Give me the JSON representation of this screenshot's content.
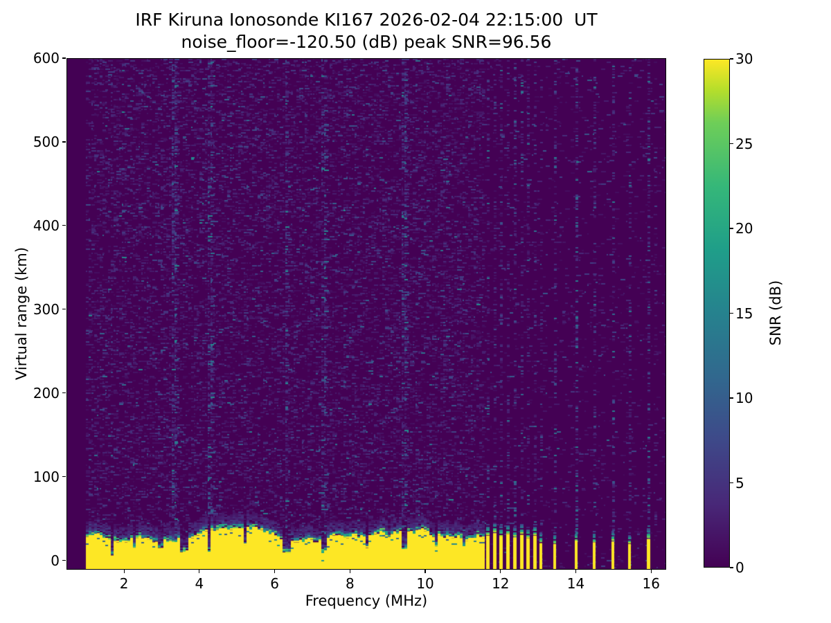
{
  "figure": {
    "title": "IRF Kiruna Ionosonde KI167 2026-02-04 22:15:00  UT",
    "subtitle": "noise_floor=-120.50 (dB) peak SNR=96.56",
    "background_color": "#ffffff"
  },
  "chart_data": {
    "type": "heatmap",
    "title": "IRF Kiruna Ionosonde KI167 2026-02-04 22:15:00  UT",
    "subtitle": "noise_floor=-120.50 (dB) peak SNR=96.56",
    "station": "IRF Kiruna Ionosonde KI167",
    "timestamp_ut": "2026-02-04 22:15:00",
    "noise_floor_db": -120.5,
    "peak_snr_db": 96.56,
    "xlabel": "Frequency (MHz)",
    "ylabel": "Virtual range (km)",
    "xlim": [
      0.47,
      16.4
    ],
    "ylim": [
      -11,
      600
    ],
    "xticks": [
      2,
      4,
      6,
      8,
      10,
      12,
      14,
      16
    ],
    "yticks": [
      0,
      100,
      200,
      300,
      400,
      500,
      600
    ],
    "grid": false,
    "colorbar": {
      "label": "SNR (dB)",
      "ticks": [
        0,
        5,
        10,
        15,
        20,
        25,
        30
      ],
      "vmin": 0,
      "vmax": 30,
      "colormap": "viridis",
      "stops": [
        [
          0,
          "#440154"
        ],
        [
          0.125,
          "#482878"
        ],
        [
          0.25,
          "#3e4989"
        ],
        [
          0.375,
          "#31688e"
        ],
        [
          0.5,
          "#26828e"
        ],
        [
          0.625,
          "#1f9e89"
        ],
        [
          0.75,
          "#35b779"
        ],
        [
          0.875,
          "#6ece58"
        ],
        [
          0.94,
          "#b5de2b"
        ],
        [
          1,
          "#fde725"
        ]
      ]
    },
    "content": {
      "seed": 20260204,
      "data_min_mhz": 0.97,
      "background_snr_db": 0,
      "noise": {
        "density": 0.4,
        "mean_db": 2.1,
        "density_above_11p6mhz": 0.08,
        "max_db": 16
      },
      "noisy_columns_mhz": [
        3.35,
        4.3,
        6.32,
        7.3,
        9.45
      ],
      "ground_band": {
        "f_start_mhz": 0.97,
        "f_end_mhz": 11.55,
        "top_km_mean": 29,
        "top_km_min": 21,
        "top_km_max": 38,
        "transition_km": 25,
        "saturated_snr_db": 30,
        "notches": [
          {
            "f": 1.65,
            "w": 0.05,
            "d": 5
          },
          {
            "f": 2.25,
            "w": 0.04,
            "d": 14
          },
          {
            "f": 2.95,
            "w": 0.05,
            "d": 12
          },
          {
            "f": 3.57,
            "w": 0.1,
            "d": 8
          },
          {
            "f": 4.25,
            "w": 0.07,
            "d": 9
          },
          {
            "f": 5.2,
            "w": 0.04,
            "d": 15
          },
          {
            "f": 6.32,
            "w": 0.09,
            "d": 6
          },
          {
            "f": 7.32,
            "w": 0.06,
            "d": 8
          },
          {
            "f": 8.45,
            "w": 0.04,
            "d": 14
          },
          {
            "f": 9.45,
            "w": 0.05,
            "d": 12
          },
          {
            "f": 10.3,
            "w": 0.04,
            "d": 16
          },
          {
            "f": 11.05,
            "w": 0.04,
            "d": 15
          }
        ]
      },
      "interference_columns": [
        {
          "f": 11.66,
          "s": 3.0,
          "p": 0.3
        },
        {
          "f": 11.84,
          "s": 3.2,
          "p": 0.32
        },
        {
          "f": 12.02,
          "s": 3.4,
          "p": 0.34
        },
        {
          "f": 12.2,
          "s": 3.2,
          "p": 0.3
        },
        {
          "f": 12.38,
          "s": 3.6,
          "p": 0.34
        },
        {
          "f": 12.56,
          "s": 3.2,
          "p": 0.3
        },
        {
          "f": 12.74,
          "s": 3.4,
          "p": 0.32
        },
        {
          "f": 12.92,
          "s": 3.0,
          "p": 0.3
        },
        {
          "f": 13.08,
          "s": 2.6,
          "p": 0.25
        },
        {
          "f": 13.45,
          "s": 3.4,
          "p": 0.3
        },
        {
          "f": 14.02,
          "s": 5.2,
          "p": 0.42
        },
        {
          "f": 14.5,
          "s": 3.6,
          "p": 0.32
        },
        {
          "f": 15.0,
          "s": 4.0,
          "p": 0.34
        },
        {
          "f": 15.45,
          "s": 3.4,
          "p": 0.3
        },
        {
          "f": 15.93,
          "s": 4.4,
          "p": 0.36
        },
        {
          "f": 16.12,
          "s": 2.2,
          "p": 0.2
        }
      ],
      "rfi_bars": [
        {
          "f": 11.66,
          "top": 29,
          "w": 5
        },
        {
          "f": 11.84,
          "top": 32,
          "w": 5
        },
        {
          "f": 12.02,
          "top": 28,
          "w": 5
        },
        {
          "f": 12.2,
          "top": 31,
          "w": 5
        },
        {
          "f": 12.38,
          "top": 27,
          "w": 5
        },
        {
          "f": 12.56,
          "top": 30,
          "w": 5
        },
        {
          "f": 12.74,
          "top": 26,
          "w": 5
        },
        {
          "f": 12.92,
          "top": 29,
          "w": 5
        },
        {
          "f": 13.08,
          "top": 20,
          "w": 4
        },
        {
          "f": 13.45,
          "top": 19,
          "w": 4
        },
        {
          "f": 14.02,
          "top": 23,
          "w": 4
        },
        {
          "f": 14.5,
          "top": 21,
          "w": 4
        },
        {
          "f": 15.0,
          "top": 22,
          "w": 4
        },
        {
          "f": 15.45,
          "top": 19,
          "w": 4
        },
        {
          "f": 15.93,
          "top": 25,
          "w": 5
        }
      ],
      "echo_speckles": [
        {
          "f": 3.33,
          "km": 140,
          "snr": 16
        },
        {
          "f": 3.42,
          "km": 136,
          "snr": 12
        },
        {
          "f": 3.5,
          "km": 142,
          "snr": 9
        }
      ]
    }
  }
}
